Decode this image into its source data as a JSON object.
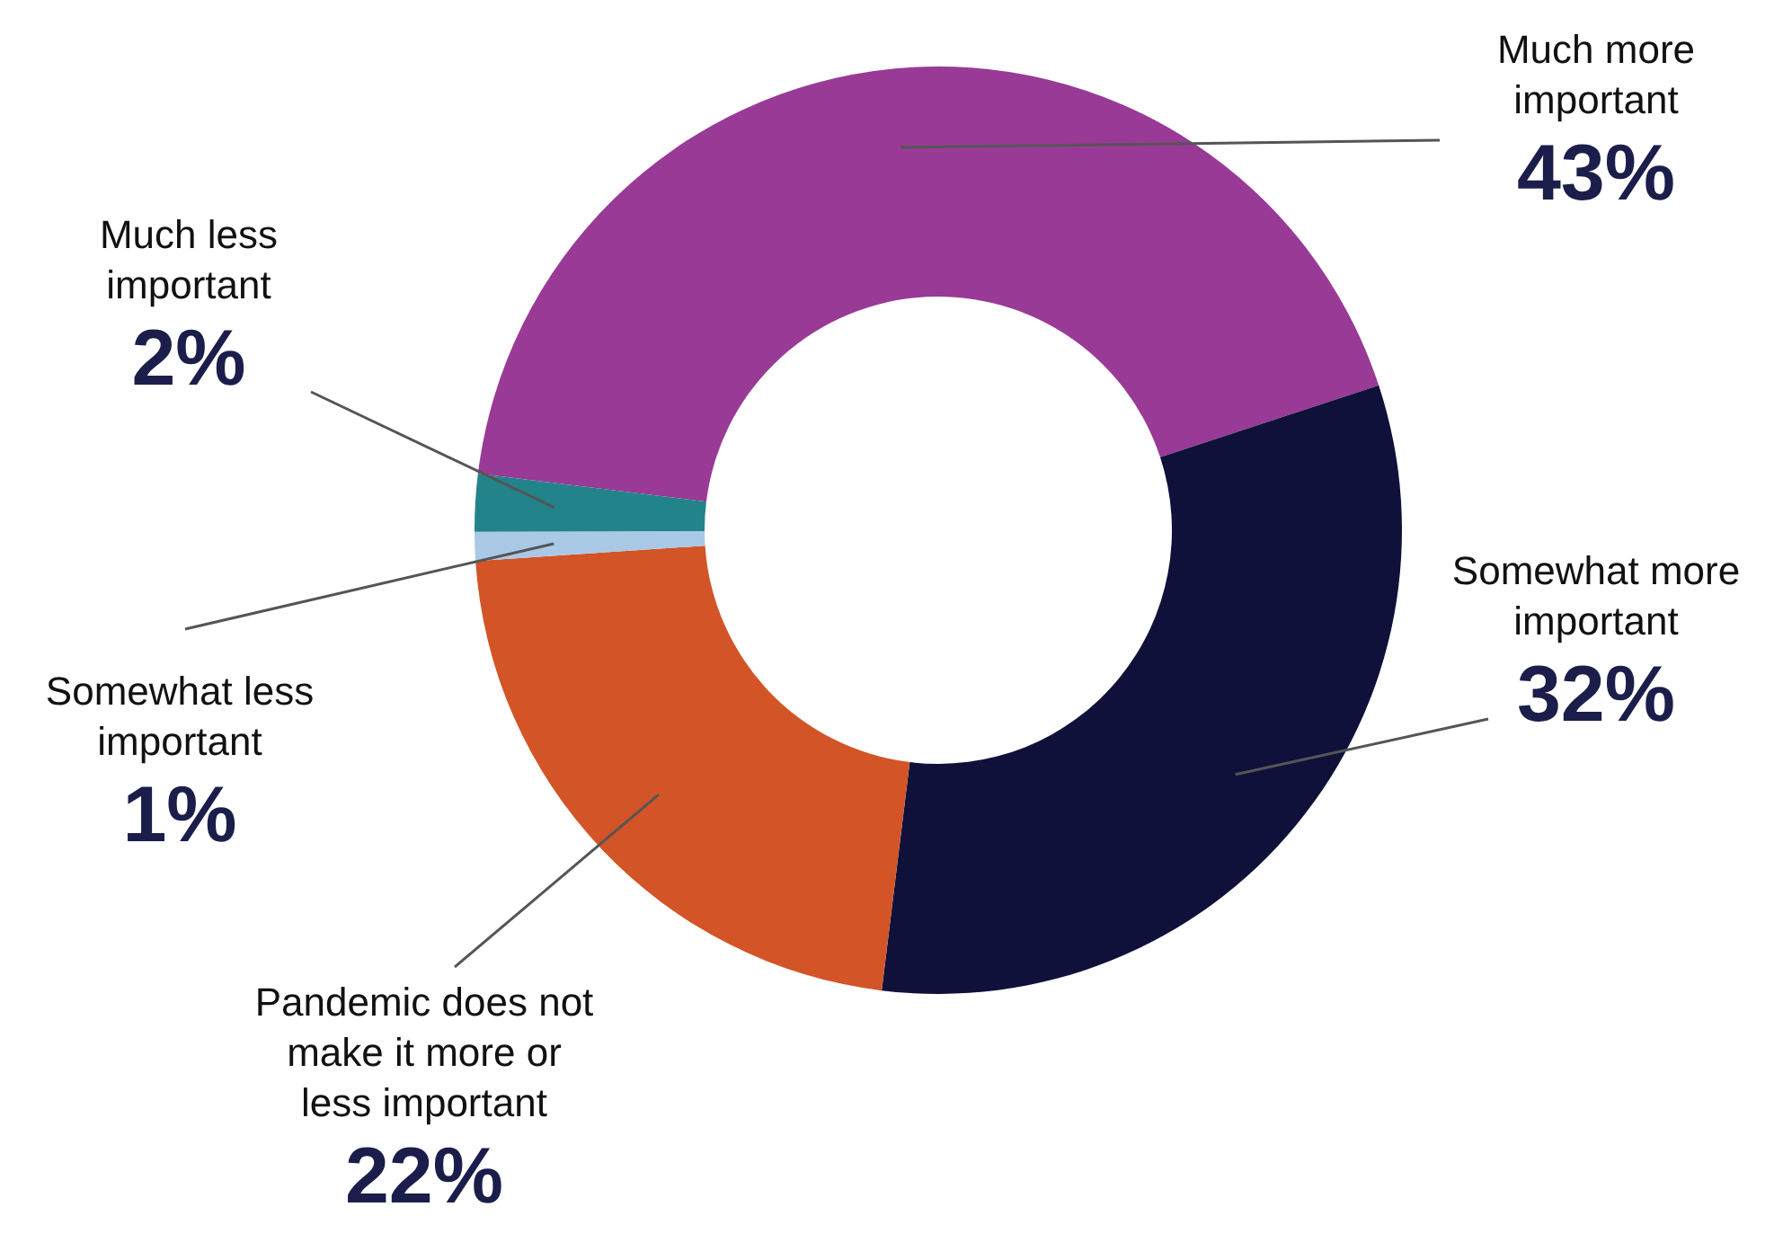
{
  "chart_data": {
    "type": "donut",
    "categories": [
      "Much more important",
      "Somewhat more important",
      "Pandemic does not make it more or less important",
      "Somewhat less important",
      "Much less important"
    ],
    "values": [
      43,
      32,
      22,
      1,
      2
    ],
    "colors": [
      "#993a96",
      "#10113a",
      "#d35426",
      "#a9c9e6",
      "#23838a"
    ],
    "value_labels": [
      "43%",
      "32%",
      "22%",
      "1%",
      "2%"
    ],
    "legend": false
  }
}
